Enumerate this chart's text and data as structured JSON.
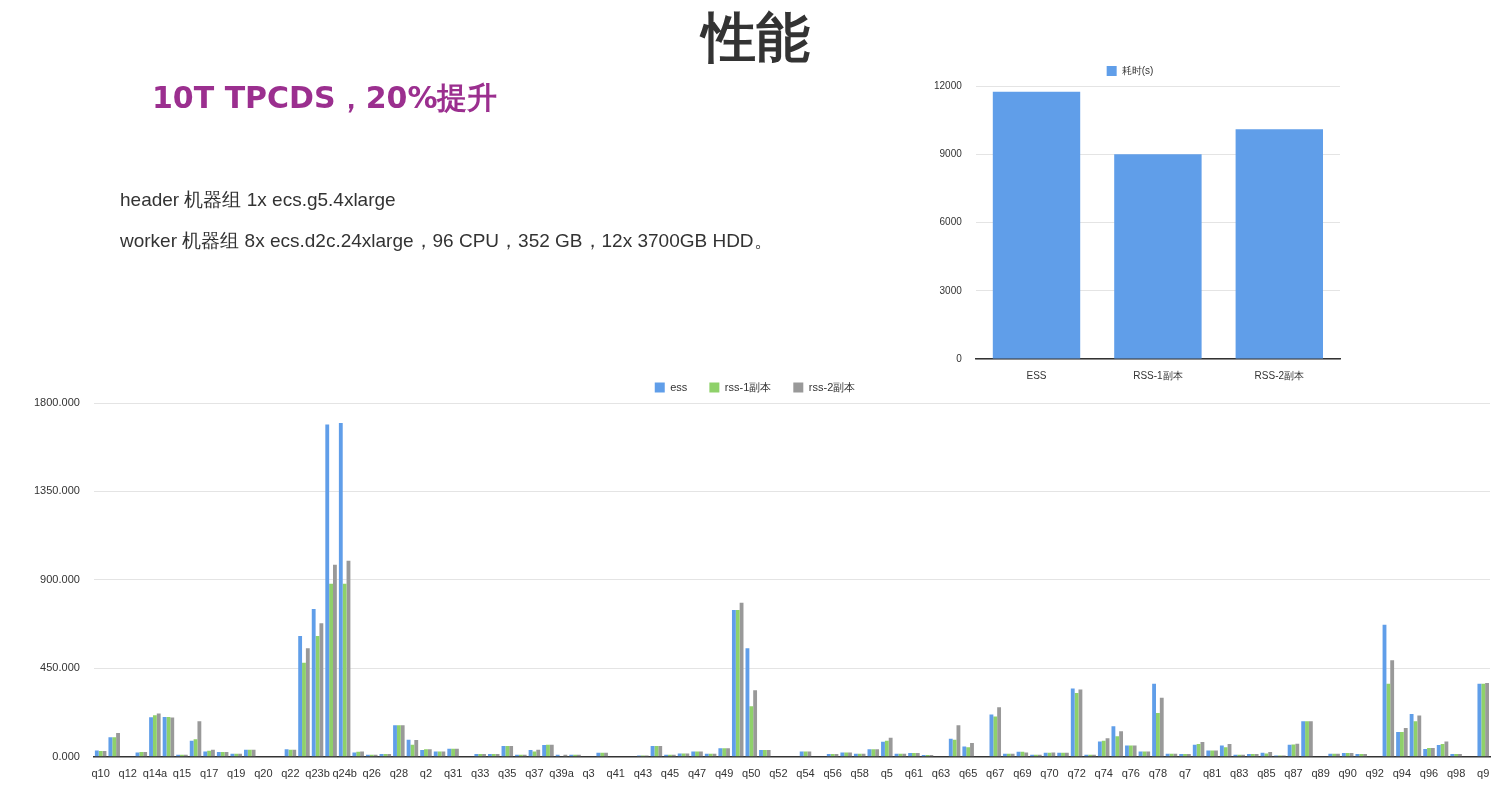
{
  "chart_data": [
    {
      "type": "other",
      "title": "性能",
      "subtitle": "10T TPCDS，20%提升",
      "annotations": [
        "header 机器组 1x ecs.g5.4xlarge",
        "worker 机器组 8x ecs.d2c.24xlarge，96 CPU，352 GB，12x 3700GB HDD。"
      ]
    },
    {
      "type": "bar",
      "categories": [
        "ESS",
        "RSS-1副本",
        "RSS-2副本"
      ],
      "series": [
        {
          "name": "耗时(s)",
          "color": "#609ee9",
          "values": [
            11750,
            9000,
            10100
          ]
        }
      ],
      "ylim": [
        0,
        12000
      ],
      "yticks": [
        0,
        3000,
        6000,
        9000,
        12000
      ],
      "grid": "y",
      "legend": "top"
    },
    {
      "type": "bar",
      "categories": [
        "q10",
        null,
        "q12",
        null,
        "q14a",
        null,
        "q15",
        null,
        "q17",
        null,
        "q19",
        null,
        "q20",
        null,
        "q22",
        null,
        "q23b",
        null,
        "q24b",
        null,
        "q26",
        null,
        "q28",
        null,
        "q2",
        null,
        "q31",
        null,
        "q33",
        null,
        "q35",
        null,
        "q37",
        null,
        "q39a",
        null,
        "q3",
        null,
        "q41",
        null,
        "q43",
        null,
        "q45",
        null,
        "q47",
        null,
        "q49",
        null,
        "q50",
        null,
        "q52",
        null,
        "q54",
        null,
        "q56",
        null,
        "q58",
        null,
        "q5",
        null,
        "q61",
        null,
        "q63",
        null,
        "q65",
        null,
        "q67",
        null,
        "q69",
        null,
        "q70",
        null,
        "q72",
        null,
        "q74",
        null,
        "q76",
        null,
        "q78",
        null,
        "q7",
        null,
        "q81",
        null,
        "q83",
        null,
        "q85",
        null,
        "q87",
        null,
        "q89",
        null,
        "q90",
        null,
        "q92",
        null,
        "q94",
        null,
        "q96",
        null,
        "q98",
        null,
        "q9"
      ],
      "series": [
        {
          "name": "ess",
          "color": "#609ee9",
          "values": [
            32,
            100,
            0,
            22,
            201,
            203,
            10,
            82,
            27,
            24,
            15,
            36,
            0,
            0,
            39,
            614,
            752,
            1690,
            1698,
            22,
            10,
            14,
            160,
            87,
            34,
            27,
            41,
            0,
            14,
            14,
            55,
            10,
            34,
            60,
            10,
            10,
            3,
            20,
            0,
            0,
            7,
            55,
            10,
            17,
            27,
            15,
            43,
            747,
            552,
            34,
            0,
            0,
            27,
            0,
            14,
            22,
            15,
            39,
            77,
            15,
            19,
            9,
            0,
            92,
            53,
            null,
            215,
            15,
            26,
            10,
            20,
            20,
            348,
            10,
            78,
            155,
            58,
            27,
            372,
            15,
            14,
            61,
            32,
            58,
            10,
            14,
            20,
            7,
            61,
            181,
            0,
            15,
            19,
            14,
            0,
            672,
            126,
            218,
            40,
            60,
            14,
            0,
            372
          ]
        },
        {
          "name": "rss-1副本",
          "color": "#8fd16a",
          "values": [
            29,
            100,
            0,
            24,
            211,
            203,
            10,
            89,
            31,
            24,
            15,
            36,
            0,
            0,
            36,
            479,
            614,
            880,
            880,
            26,
            10,
            14,
            160,
            61,
            39,
            27,
            41,
            0,
            14,
            14,
            55,
            10,
            27,
            61,
            null,
            10,
            3,
            20,
            0,
            0,
            7,
            55,
            10,
            17,
            27,
            15,
            43,
            747,
            257,
            34,
            0,
            0,
            27,
            0,
            14,
            22,
            15,
            39,
            82,
            15,
            19,
            9,
            0,
            87,
            49,
            3,
            205,
            15,
            26,
            10,
            20,
            20,
            324,
            10,
            82,
            104,
            58,
            27,
            223,
            15,
            14,
            65,
            32,
            48,
            10,
            14,
            17,
            7,
            63,
            181,
            0,
            15,
            19,
            14,
            0,
            372,
            126,
            181,
            45,
            65,
            14,
            0,
            372
          ]
        },
        {
          "name": "rss-2副本",
          "color": "#999999",
          "values": [
            29,
            121,
            0,
            24,
            220,
            200,
            10,
            181,
            36,
            24,
            15,
            36,
            0,
            0,
            36,
            552,
            679,
            977,
            997,
            27,
            10,
            14,
            160,
            85,
            39,
            27,
            41,
            0,
            14,
            14,
            55,
            10,
            36,
            61,
            10,
            10,
            3,
            20,
            0,
            0,
            7,
            55,
            10,
            17,
            27,
            15,
            43,
            784,
            338,
            34,
            0,
            0,
            27,
            0,
            14,
            22,
            15,
            39,
            97,
            15,
            19,
            9,
            0,
            160,
            70,
            3,
            252,
            15,
            22,
            10,
            22,
            20,
            343,
            10,
            95,
            130,
            58,
            27,
            300,
            15,
            14,
            75,
            32,
            65,
            10,
            14,
            24,
            7,
            66,
            181,
            0,
            15,
            19,
            14,
            0,
            491,
            147,
            210,
            45,
            78,
            14,
            0,
            375
          ]
        }
      ],
      "ylim": [
        0,
        1800
      ],
      "yticks": [
        {
          "value": 0,
          "label": "0.000"
        },
        {
          "value": 450,
          "label": "450.000"
        },
        {
          "value": 900,
          "label": "900.000"
        },
        {
          "value": 1350,
          "label": "1350.000"
        },
        {
          "value": 1800,
          "label": "1800.000"
        }
      ],
      "grid": "y",
      "legend": "top"
    }
  ]
}
